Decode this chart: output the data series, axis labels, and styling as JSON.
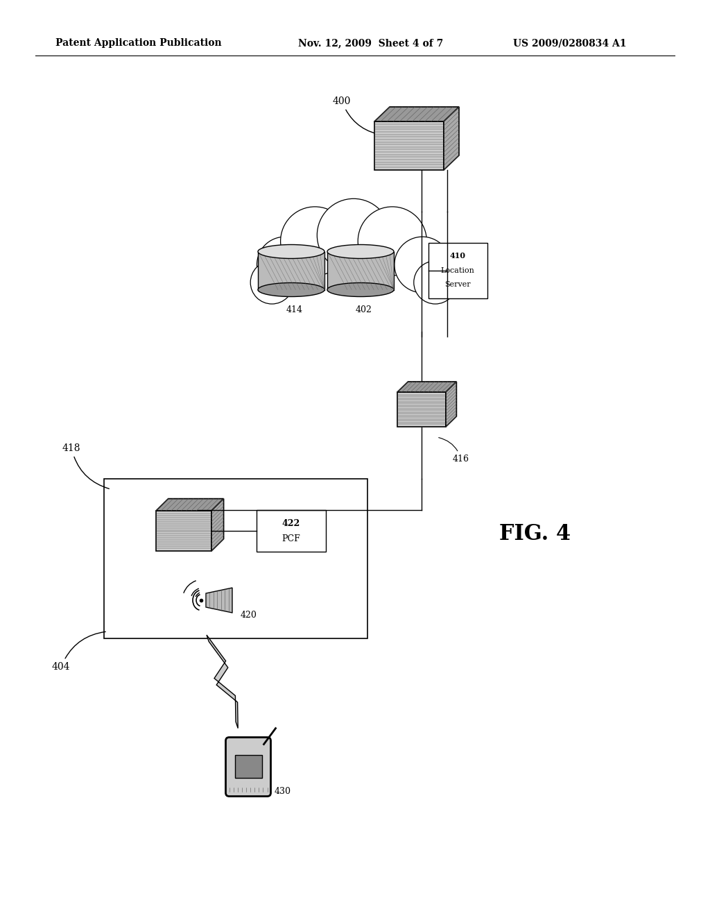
{
  "header_left": "Patent Application Publication",
  "header_center": "Nov. 12, 2009  Sheet 4 of 7",
  "header_right": "US 2009/0280834 A1",
  "bg_color": "#ffffff",
  "fig_label": "FIG. 4",
  "label_400": "400",
  "label_402": "402",
  "label_410": "410",
  "label_414": "414",
  "label_416": "416",
  "label_418": "418",
  "label_420": "420",
  "label_422": "422",
  "label_430": "430",
  "label_404": "404",
  "loc_server_line1": "410",
  "loc_server_line2": "Location",
  "loc_server_line3": "Server",
  "pcf_line1": "422",
  "pcf_line2": "PCF"
}
